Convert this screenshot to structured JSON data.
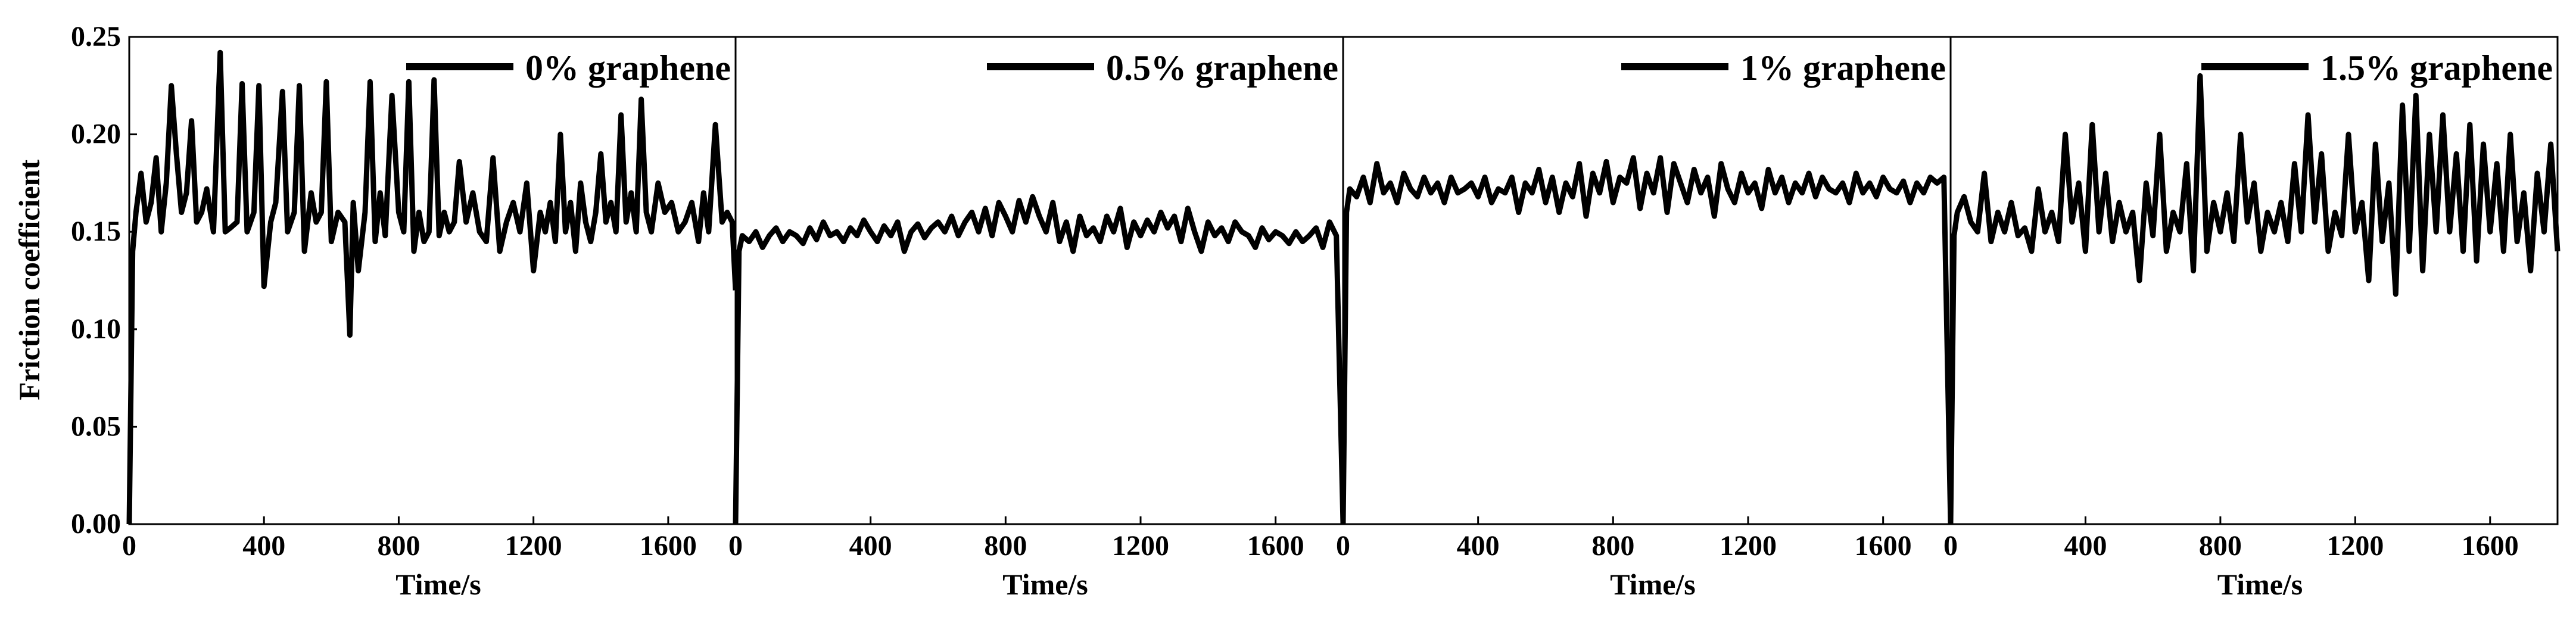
{
  "figure": {
    "y_axis_label": "Friction coefficient",
    "y_tick_labels": [
      "0.00",
      "0.05",
      "0.10",
      "0.15",
      "0.20",
      "0.25"
    ],
    "line_color": "#000000"
  },
  "chart_data": [
    {
      "type": "line",
      "legend": "0% graphene",
      "xlabel": "Time/s",
      "xlim": [
        0,
        1800
      ],
      "ylim": [
        0,
        0.25
      ],
      "x_tick_labels": [
        "0",
        "400",
        "800",
        "1200",
        "1600"
      ],
      "series": [
        {
          "x": [
            0,
            10,
            20,
            35,
            50,
            65,
            80,
            95,
            110,
            125,
            140,
            155,
            170,
            185,
            200,
            215,
            230,
            250,
            270,
            285,
            300,
            320,
            335,
            350,
            370,
            385,
            400,
            420,
            435,
            455,
            470,
            490,
            505,
            520,
            540,
            555,
            570,
            585,
            600,
            620,
            640,
            655,
            665,
            680,
            700,
            715,
            730,
            745,
            760,
            780,
            800,
            815,
            830,
            845,
            860,
            875,
            890,
            905,
            920,
            935,
            950,
            965,
            980,
            1000,
            1020,
            1040,
            1060,
            1080,
            1100,
            1120,
            1140,
            1160,
            1180,
            1200,
            1220,
            1235,
            1250,
            1265,
            1280,
            1295,
            1310,
            1325,
            1340,
            1355,
            1370,
            1385,
            1400,
            1415,
            1430,
            1445,
            1460,
            1475,
            1490,
            1505,
            1520,
            1535,
            1550,
            1570,
            1590,
            1610,
            1630,
            1650,
            1670,
            1690,
            1705,
            1720,
            1740,
            1760,
            1775,
            1790,
            1800
          ],
          "y": [
            0.0,
            0.14,
            0.16,
            0.18,
            0.155,
            0.165,
            0.188,
            0.15,
            0.175,
            0.225,
            0.19,
            0.16,
            0.17,
            0.207,
            0.155,
            0.16,
            0.172,
            0.15,
            0.242,
            0.15,
            0.152,
            0.155,
            0.226,
            0.15,
            0.16,
            0.225,
            0.122,
            0.155,
            0.165,
            0.222,
            0.15,
            0.16,
            0.225,
            0.14,
            0.17,
            0.155,
            0.16,
            0.227,
            0.145,
            0.16,
            0.155,
            0.097,
            0.165,
            0.13,
            0.16,
            0.227,
            0.145,
            0.17,
            0.148,
            0.22,
            0.16,
            0.15,
            0.227,
            0.14,
            0.16,
            0.145,
            0.15,
            0.228,
            0.148,
            0.16,
            0.15,
            0.155,
            0.186,
            0.155,
            0.17,
            0.15,
            0.145,
            0.188,
            0.14,
            0.155,
            0.165,
            0.15,
            0.175,
            0.13,
            0.16,
            0.15,
            0.165,
            0.145,
            0.2,
            0.15,
            0.165,
            0.14,
            0.175,
            0.155,
            0.145,
            0.16,
            0.19,
            0.155,
            0.165,
            0.15,
            0.21,
            0.155,
            0.17,
            0.15,
            0.218,
            0.16,
            0.15,
            0.175,
            0.16,
            0.165,
            0.15,
            0.155,
            0.165,
            0.145,
            0.17,
            0.15,
            0.205,
            0.155,
            0.16,
            0.155,
            0.12
          ]
        }
      ]
    },
    {
      "type": "line",
      "legend": "0.5% graphene",
      "xlabel": "Time/s",
      "xlim": [
        0,
        1800
      ],
      "ylim": [
        0,
        0.25
      ],
      "x_tick_labels": [
        "0",
        "400",
        "800",
        "1200",
        "1600"
      ],
      "series": [
        {
          "x": [
            0,
            10,
            20,
            40,
            60,
            80,
            100,
            120,
            140,
            160,
            180,
            200,
            220,
            240,
            260,
            280,
            300,
            320,
            340,
            360,
            380,
            400,
            420,
            440,
            460,
            480,
            500,
            520,
            540,
            560,
            580,
            600,
            620,
            640,
            660,
            680,
            700,
            720,
            740,
            760,
            780,
            800,
            820,
            840,
            860,
            880,
            900,
            920,
            940,
            960,
            980,
            1000,
            1020,
            1040,
            1060,
            1080,
            1100,
            1120,
            1140,
            1160,
            1180,
            1200,
            1220,
            1240,
            1260,
            1280,
            1300,
            1320,
            1340,
            1360,
            1380,
            1400,
            1420,
            1440,
            1460,
            1480,
            1500,
            1520,
            1540,
            1560,
            1580,
            1600,
            1620,
            1640,
            1660,
            1680,
            1700,
            1720,
            1740,
            1760,
            1780,
            1800
          ],
          "y": [
            0.0,
            0.14,
            0.148,
            0.145,
            0.15,
            0.142,
            0.148,
            0.152,
            0.145,
            0.15,
            0.148,
            0.144,
            0.152,
            0.146,
            0.155,
            0.148,
            0.15,
            0.145,
            0.152,
            0.148,
            0.156,
            0.15,
            0.145,
            0.153,
            0.148,
            0.155,
            0.14,
            0.15,
            0.154,
            0.147,
            0.152,
            0.155,
            0.15,
            0.158,
            0.148,
            0.155,
            0.16,
            0.15,
            0.162,
            0.148,
            0.165,
            0.158,
            0.15,
            0.166,
            0.155,
            0.168,
            0.158,
            0.15,
            0.165,
            0.145,
            0.155,
            0.14,
            0.158,
            0.148,
            0.152,
            0.145,
            0.158,
            0.15,
            0.162,
            0.142,
            0.155,
            0.148,
            0.156,
            0.15,
            0.16,
            0.152,
            0.158,
            0.145,
            0.162,
            0.15,
            0.14,
            0.155,
            0.148,
            0.152,
            0.145,
            0.155,
            0.15,
            0.148,
            0.142,
            0.152,
            0.146,
            0.15,
            0.148,
            0.144,
            0.15,
            0.145,
            0.148,
            0.152,
            0.142,
            0.155,
            0.148,
            0.0
          ]
        }
      ]
    },
    {
      "type": "line",
      "legend": "1% graphene",
      "xlabel": "Time/s",
      "xlim": [
        0,
        1800
      ],
      "ylim": [
        0,
        0.25
      ],
      "x_tick_labels": [
        "0",
        "400",
        "800",
        "1200",
        "1600"
      ],
      "series": [
        {
          "x": [
            0,
            10,
            20,
            40,
            60,
            80,
            100,
            120,
            140,
            160,
            180,
            200,
            220,
            240,
            260,
            280,
            300,
            320,
            340,
            360,
            380,
            400,
            420,
            440,
            460,
            480,
            500,
            520,
            540,
            560,
            580,
            600,
            620,
            640,
            660,
            680,
            700,
            720,
            740,
            760,
            780,
            800,
            820,
            840,
            860,
            880,
            900,
            920,
            940,
            960,
            980,
            1000,
            1020,
            1040,
            1060,
            1080,
            1100,
            1120,
            1140,
            1160,
            1180,
            1200,
            1220,
            1240,
            1260,
            1280,
            1300,
            1320,
            1340,
            1360,
            1380,
            1400,
            1420,
            1440,
            1460,
            1480,
            1500,
            1520,
            1540,
            1560,
            1580,
            1600,
            1620,
            1640,
            1660,
            1680,
            1700,
            1720,
            1740,
            1760,
            1780,
            1800
          ],
          "y": [
            0.0,
            0.16,
            0.172,
            0.168,
            0.178,
            0.165,
            0.185,
            0.17,
            0.175,
            0.165,
            0.18,
            0.172,
            0.168,
            0.178,
            0.17,
            0.175,
            0.165,
            0.178,
            0.17,
            0.172,
            0.175,
            0.168,
            0.178,
            0.165,
            0.172,
            0.17,
            0.178,
            0.16,
            0.175,
            0.17,
            0.182,
            0.165,
            0.178,
            0.16,
            0.175,
            0.168,
            0.185,
            0.158,
            0.18,
            0.17,
            0.186,
            0.165,
            0.178,
            0.175,
            0.188,
            0.162,
            0.18,
            0.17,
            0.188,
            0.16,
            0.185,
            0.175,
            0.165,
            0.182,
            0.17,
            0.178,
            0.158,
            0.185,
            0.172,
            0.165,
            0.18,
            0.17,
            0.175,
            0.162,
            0.182,
            0.17,
            0.178,
            0.165,
            0.175,
            0.17,
            0.18,
            0.168,
            0.178,
            0.172,
            0.17,
            0.175,
            0.165,
            0.18,
            0.17,
            0.175,
            0.168,
            0.178,
            0.172,
            0.17,
            0.176,
            0.165,
            0.175,
            0.17,
            0.178,
            0.175,
            0.178,
            0.0
          ]
        }
      ]
    },
    {
      "type": "line",
      "legend": "1.5% graphene",
      "xlabel": "Time/s",
      "xlim": [
        0,
        1800
      ],
      "ylim": [
        0,
        0.25
      ],
      "x_tick_labels": [
        "0",
        "400",
        "800",
        "1200",
        "1600"
      ],
      "series": [
        {
          "x": [
            0,
            10,
            20,
            40,
            60,
            80,
            100,
            120,
            140,
            160,
            180,
            200,
            220,
            240,
            260,
            280,
            300,
            320,
            340,
            360,
            380,
            400,
            420,
            440,
            460,
            480,
            500,
            520,
            540,
            560,
            580,
            600,
            620,
            640,
            660,
            680,
            700,
            720,
            740,
            760,
            780,
            800,
            820,
            840,
            860,
            880,
            900,
            920,
            940,
            960,
            980,
            1000,
            1020,
            1040,
            1060,
            1080,
            1100,
            1120,
            1140,
            1160,
            1180,
            1200,
            1220,
            1240,
            1260,
            1280,
            1300,
            1320,
            1340,
            1360,
            1380,
            1400,
            1420,
            1440,
            1460,
            1480,
            1500,
            1520,
            1540,
            1560,
            1580,
            1600,
            1620,
            1640,
            1660,
            1680,
            1700,
            1720,
            1740,
            1760,
            1780,
            1800
          ],
          "y": [
            0.0,
            0.148,
            0.16,
            0.168,
            0.155,
            0.15,
            0.18,
            0.145,
            0.16,
            0.15,
            0.165,
            0.148,
            0.152,
            0.14,
            0.172,
            0.15,
            0.16,
            0.145,
            0.2,
            0.155,
            0.175,
            0.14,
            0.205,
            0.15,
            0.18,
            0.145,
            0.165,
            0.15,
            0.16,
            0.125,
            0.175,
            0.148,
            0.2,
            0.14,
            0.16,
            0.15,
            0.185,
            0.13,
            0.23,
            0.14,
            0.165,
            0.15,
            0.17,
            0.145,
            0.2,
            0.155,
            0.175,
            0.14,
            0.16,
            0.15,
            0.165,
            0.145,
            0.185,
            0.15,
            0.21,
            0.155,
            0.19,
            0.14,
            0.16,
            0.148,
            0.2,
            0.15,
            0.165,
            0.125,
            0.195,
            0.145,
            0.175,
            0.118,
            0.215,
            0.14,
            0.22,
            0.13,
            0.2,
            0.15,
            0.21,
            0.15,
            0.19,
            0.14,
            0.205,
            0.135,
            0.195,
            0.15,
            0.185,
            0.14,
            0.2,
            0.145,
            0.17,
            0.13,
            0.18,
            0.15,
            0.195,
            0.14
          ]
        }
      ]
    }
  ]
}
